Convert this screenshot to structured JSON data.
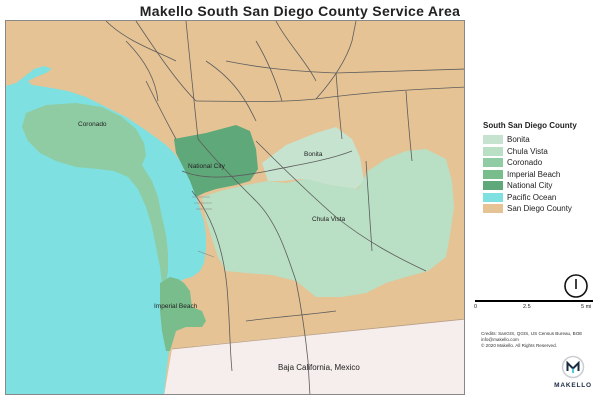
{
  "title": "Makello South San Diego County Service Area",
  "map": {
    "place_labels": {
      "coronado": "Coronado",
      "national_city": "National City",
      "bonita": "Bonita",
      "chula_vista": "Chula Vista",
      "imperial_beach": "Imperial Beach",
      "baja": "Baja California, Mexico"
    },
    "colors": {
      "pacific_ocean": "#7ee0e0",
      "san_diego_county": "#e5c395",
      "bonita": "#c6e3cf",
      "chula_vista": "#b9dfc4",
      "coronado": "#8fcca3",
      "imperial_beach": "#79bd8d",
      "national_city": "#5fa87a",
      "mexico": "#f6eded",
      "roads": "#5c5c5c"
    }
  },
  "legend": {
    "title": "South San Diego County",
    "items": [
      {
        "label": "Bonita",
        "color": "#c6e3cf"
      },
      {
        "label": "Chula Vista",
        "color": "#b9dfc4"
      },
      {
        "label": "Coronado",
        "color": "#8fcca3"
      },
      {
        "label": "Imperial Beach",
        "color": "#79bd8d"
      },
      {
        "label": "National City",
        "color": "#5fa87a"
      },
      {
        "label": "Pacific Ocean",
        "color": "#7ee0e0"
      },
      {
        "label": "San Diego County",
        "color": "#e5c395"
      }
    ]
  },
  "scale": {
    "tick_0": "0",
    "tick_mid": "2.5",
    "tick_max": "5 mi"
  },
  "credits": {
    "line1": "Credits: SanGIS, QGIS, US Census Bureau, BOE",
    "line2": "info@makello.com",
    "line3": "© 2020 Makello. All Rights Reserved."
  },
  "logo": {
    "name": "MAKELLO"
  }
}
